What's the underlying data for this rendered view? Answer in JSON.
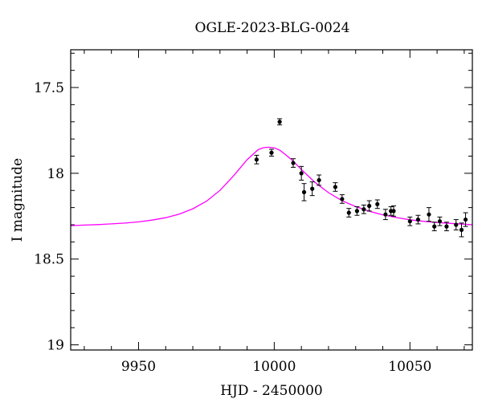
{
  "chart_data": {
    "type": "scatter",
    "title": "OGLE-2023-BLG-0024",
    "xlabel": "HJD - 2450000",
    "ylabel": "I magnitude",
    "xlim": [
      9925,
      10073
    ],
    "ylim": [
      19.03,
      17.28
    ],
    "y_inverted": true,
    "grid": false,
    "x_ticks": [
      9950,
      10000,
      10050
    ],
    "x_tick_labels": [
      "9950",
      "10000",
      "10050"
    ],
    "y_ticks": [
      17.5,
      18,
      18.5,
      19
    ],
    "y_tick_labels": [
      "17.5",
      "18",
      "18.5",
      "19"
    ],
    "colors": {
      "model": "#ff00ff",
      "data": "#000000"
    },
    "model": {
      "name": "",
      "x": [
        9925,
        9930,
        9935,
        9940,
        9945,
        9950,
        9955,
        9960,
        9965,
        9970,
        9975,
        9980,
        9985,
        9990,
        9994,
        9996,
        9998,
        10000,
        10002,
        10004,
        10006,
        10008,
        10010,
        10015,
        10020,
        10025,
        10030,
        10035,
        10040,
        10045,
        10050,
        10055,
        10060,
        10065,
        10070,
        10073
      ],
      "y": [
        18.305,
        18.302,
        18.299,
        18.295,
        18.29,
        18.283,
        18.273,
        18.259,
        18.238,
        18.207,
        18.163,
        18.1,
        18.015,
        17.921,
        17.863,
        17.851,
        17.848,
        17.852,
        17.865,
        17.889,
        17.915,
        17.946,
        17.978,
        18.053,
        18.113,
        18.16,
        18.194,
        18.221,
        18.242,
        18.258,
        18.271,
        18.28,
        18.287,
        18.292,
        18.297,
        18.3
      ]
    },
    "series": [
      {
        "name": "",
        "points": [
          {
            "x": 9993.5,
            "y": 17.92,
            "err": 0.025
          },
          {
            "x": 9999,
            "y": 17.88,
            "err": 0.02
          },
          {
            "x": 10002,
            "y": 17.7,
            "err": 0.018
          },
          {
            "x": 10007,
            "y": 17.94,
            "err": 0.025
          },
          {
            "x": 10010,
            "y": 18.0,
            "err": 0.04
          },
          {
            "x": 10011,
            "y": 18.11,
            "err": 0.05
          },
          {
            "x": 10014,
            "y": 18.09,
            "err": 0.04
          },
          {
            "x": 10016.5,
            "y": 18.04,
            "err": 0.03
          },
          {
            "x": 10022.5,
            "y": 18.08,
            "err": 0.025
          },
          {
            "x": 10025,
            "y": 18.15,
            "err": 0.025
          },
          {
            "x": 10027.5,
            "y": 18.23,
            "err": 0.025
          },
          {
            "x": 10030.5,
            "y": 18.22,
            "err": 0.025
          },
          {
            "x": 10033,
            "y": 18.21,
            "err": 0.025
          },
          {
            "x": 10035,
            "y": 18.19,
            "err": 0.03
          },
          {
            "x": 10038,
            "y": 18.18,
            "err": 0.025
          },
          {
            "x": 10041,
            "y": 18.24,
            "err": 0.03
          },
          {
            "x": 10043,
            "y": 18.22,
            "err": 0.025
          },
          {
            "x": 10044,
            "y": 18.22,
            "err": 0.03
          },
          {
            "x": 10050,
            "y": 18.28,
            "err": 0.025
          },
          {
            "x": 10053,
            "y": 18.27,
            "err": 0.025
          },
          {
            "x": 10057,
            "y": 18.24,
            "err": 0.04
          },
          {
            "x": 10059,
            "y": 18.31,
            "err": 0.025
          },
          {
            "x": 10061,
            "y": 18.28,
            "err": 0.025
          },
          {
            "x": 10063.5,
            "y": 18.31,
            "err": 0.025
          },
          {
            "x": 10067,
            "y": 18.3,
            "err": 0.03
          },
          {
            "x": 10069,
            "y": 18.33,
            "err": 0.04
          },
          {
            "x": 10070.5,
            "y": 18.27,
            "err": 0.04
          }
        ]
      }
    ]
  }
}
